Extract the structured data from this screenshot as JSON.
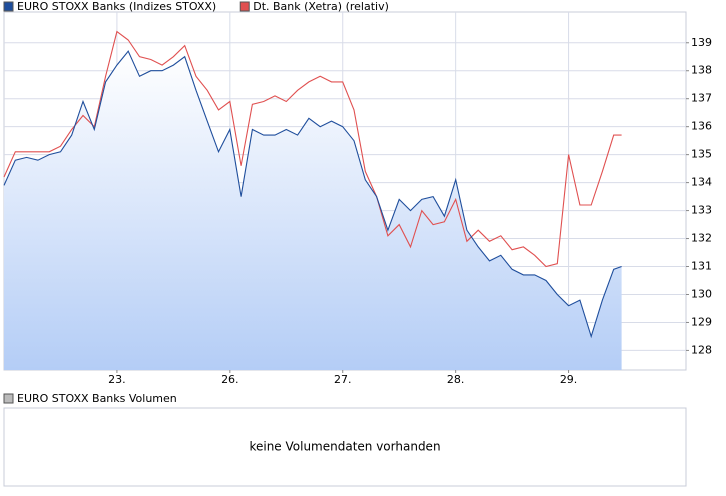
{
  "chart_data": {
    "type": "line",
    "legend": "top",
    "grid": true,
    "x": [
      -1.0,
      -0.9,
      -0.8,
      -0.7,
      -0.6,
      -0.5,
      -0.4,
      -0.3,
      -0.2,
      -0.1,
      0.0,
      0.1,
      0.2,
      0.3,
      0.4,
      0.5,
      0.6,
      0.7,
      0.8,
      0.9,
      1.0,
      1.1,
      1.2,
      1.3,
      1.4,
      1.5,
      1.6,
      1.7,
      1.8,
      1.9,
      2.0,
      2.1,
      2.2,
      2.3,
      2.4,
      2.5,
      2.6,
      2.7,
      2.8,
      2.9,
      3.0,
      3.1,
      3.2,
      3.3,
      3.4,
      3.5,
      3.6,
      3.7,
      3.8,
      3.9,
      4.0,
      4.1,
      4.2,
      4.3,
      4.4,
      4.47
    ],
    "xlim": [
      -1.0,
      5.04
    ],
    "xticks": [
      {
        "value": 0,
        "label": "23."
      },
      {
        "value": 1,
        "label": "26."
      },
      {
        "value": 2,
        "label": "27."
      },
      {
        "value": 3,
        "label": "28."
      },
      {
        "value": 4,
        "label": "29."
      }
    ],
    "ylim": [
      127.3,
      140.1
    ],
    "yticks": [
      128,
      129,
      130,
      131,
      132,
      133,
      134,
      135,
      136,
      137,
      138,
      139
    ],
    "series": [
      {
        "name": "EURO STOXX Banks (Indizes STOXX)",
        "color": "#1f4e9c",
        "area": true,
        "values": [
          133.9,
          134.8,
          134.9,
          134.8,
          135.0,
          135.1,
          135.7,
          136.9,
          135.9,
          137.6,
          138.2,
          138.7,
          137.8,
          138.0,
          138.0,
          138.2,
          138.5,
          137.3,
          136.2,
          135.1,
          135.9,
          133.5,
          135.9,
          135.7,
          135.7,
          135.9,
          135.7,
          136.3,
          136.0,
          136.2,
          136.0,
          135.5,
          134.1,
          133.5,
          132.3,
          133.4,
          133.0,
          133.4,
          133.5,
          132.8,
          134.1,
          132.3,
          131.7,
          131.2,
          131.4,
          130.9,
          130.7,
          130.7,
          130.5,
          130.0,
          129.6,
          129.8,
          128.5,
          129.8,
          130.9,
          131.0
        ]
      },
      {
        "name": "Dt. Bank (Xetra) (relativ)",
        "color": "#e05050",
        "area": false,
        "values": [
          134.2,
          135.1,
          135.1,
          135.1,
          135.1,
          135.3,
          135.9,
          136.4,
          136.0,
          137.8,
          139.4,
          139.1,
          138.5,
          138.4,
          138.2,
          138.5,
          138.9,
          137.8,
          137.3,
          136.6,
          136.9,
          134.6,
          136.8,
          136.9,
          137.1,
          136.9,
          137.3,
          137.6,
          137.8,
          137.6,
          137.6,
          136.6,
          134.4,
          133.5,
          132.1,
          132.5,
          131.7,
          133.0,
          132.5,
          132.6,
          133.4,
          131.9,
          132.3,
          131.9,
          132.1,
          131.6,
          131.7,
          131.4,
          131.0,
          131.1,
          135.0,
          133.2,
          133.2,
          134.4,
          135.7,
          135.7
        ]
      }
    ],
    "volume_legend": "EURO STOXX Banks Volumen",
    "volume_message": "keine Volumendaten vorhanden"
  }
}
